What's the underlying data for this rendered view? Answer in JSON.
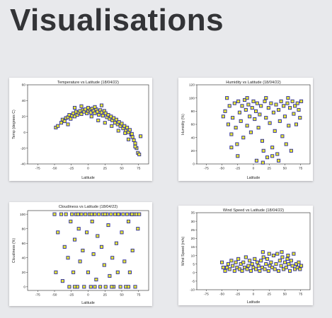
{
  "page": {
    "title": "Visualisations"
  },
  "colors": {
    "fill": "#e8e832",
    "edge": "#2a2a9a",
    "axis": "#222222",
    "background": "#e8e9ec"
  },
  "charts": [
    {
      "id": "temp",
      "title": "Temperature vs Latitude (18/04/22)",
      "xlabel": "Latitude",
      "ylabel": "Temp (degrees C)",
      "xticks": [
        "-75",
        "-50",
        "-25",
        "0",
        "25",
        "50",
        "75"
      ],
      "yticks": [
        "60",
        "40",
        "20",
        "0",
        "-20",
        "-40"
      ]
    },
    {
      "id": "humidity",
      "title": "Humidity vs Latitude (18/04/22)",
      "xlabel": "Latitude",
      "ylabel": "Humidity (%)",
      "xticks": [
        "-75",
        "-50",
        "-25",
        "0",
        "25",
        "50",
        "75"
      ],
      "yticks": [
        "120",
        "100",
        "80",
        "60",
        "40",
        "20",
        "0"
      ]
    },
    {
      "id": "cloud",
      "title": "Cloudiness vs Latitude (18/04/22)",
      "xlabel": "Latitude",
      "ylabel": "Cloudiness (%)",
      "xticks": [
        "-75",
        "-50",
        "-25",
        "0",
        "25",
        "50",
        "75"
      ],
      "yticks": [
        "100",
        "80",
        "60",
        "40",
        "20",
        "0"
      ]
    },
    {
      "id": "wind",
      "title": "Wind Speed vs Latitude (18/04/22)",
      "xlabel": "Latitude",
      "ylabel": "Wind Speed (m/s)",
      "xticks": [
        "-75",
        "-50",
        "-25",
        "0",
        "25",
        "50",
        "75"
      ],
      "yticks": [
        "35",
        "30",
        "25",
        "20",
        "15",
        "10",
        "5",
        "0",
        "-5",
        "-10"
      ]
    }
  ],
  "chart_data": [
    {
      "type": "scatter",
      "title": "Temperature vs Latitude (18/04/22)",
      "xlabel": "Latitude",
      "ylabel": "Temp (degrees C)",
      "xlim": [
        -90,
        90
      ],
      "ylim": [
        -40,
        60
      ],
      "points": [
        [
          -48,
          6
        ],
        [
          -45,
          8
        ],
        [
          -40,
          12
        ],
        [
          -38,
          16
        ],
        [
          -35,
          14
        ],
        [
          -33,
          18
        ],
        [
          -30,
          19
        ],
        [
          -28,
          22
        ],
        [
          -26,
          17
        ],
        [
          -24,
          21
        ],
        [
          -22,
          24
        ],
        [
          -20,
          20
        ],
        [
          -18,
          26
        ],
        [
          -16,
          22
        ],
        [
          -14,
          25
        ],
        [
          -12,
          27
        ],
        [
          -10,
          23
        ],
        [
          -8,
          28
        ],
        [
          -6,
          26
        ],
        [
          -4,
          29
        ],
        [
          -2,
          24
        ],
        [
          0,
          27
        ],
        [
          2,
          29
        ],
        [
          4,
          25
        ],
        [
          6,
          30
        ],
        [
          8,
          27
        ],
        [
          10,
          24
        ],
        [
          12,
          29
        ],
        [
          14,
          26
        ],
        [
          16,
          22
        ],
        [
          18,
          28
        ],
        [
          20,
          25
        ],
        [
          22,
          21
        ],
        [
          24,
          27
        ],
        [
          26,
          24
        ],
        [
          28,
          19
        ],
        [
          30,
          22
        ],
        [
          32,
          17
        ],
        [
          34,
          20
        ],
        [
          36,
          15
        ],
        [
          38,
          18
        ],
        [
          40,
          12
        ],
        [
          42,
          16
        ],
        [
          44,
          10
        ],
        [
          46,
          13
        ],
        [
          48,
          8
        ],
        [
          50,
          11
        ],
        [
          52,
          5
        ],
        [
          54,
          8
        ],
        [
          56,
          2
        ],
        [
          58,
          6
        ],
        [
          60,
          0
        ],
        [
          62,
          3
        ],
        [
          64,
          -3
        ],
        [
          66,
          -6
        ],
        [
          68,
          -10
        ],
        [
          70,
          -14
        ],
        [
          72,
          -20
        ],
        [
          74,
          -26
        ],
        [
          76,
          -28
        ],
        [
          78,
          -5
        ],
        [
          -20,
          31
        ],
        [
          -10,
          33
        ],
        [
          0,
          31
        ],
        [
          10,
          32
        ],
        [
          20,
          34
        ],
        [
          5,
          20
        ],
        [
          15,
          15
        ],
        [
          25,
          12
        ],
        [
          -30,
          10
        ],
        [
          35,
          8
        ],
        [
          45,
          2
        ],
        [
          55,
          -1
        ],
        [
          65,
          -2
        ],
        [
          70,
          -18
        ],
        [
          60,
          -9
        ]
      ]
    },
    {
      "type": "scatter",
      "title": "Humidity vs Latitude (18/04/22)",
      "xlabel": "Latitude",
      "ylabel": "Humidity (%)",
      "xlim": [
        -90,
        90
      ],
      "ylim": [
        0,
        120
      ],
      "points": [
        [
          -48,
          72
        ],
        [
          -45,
          80
        ],
        [
          -40,
          60
        ],
        [
          -38,
          88
        ],
        [
          -35,
          45
        ],
        [
          -33,
          70
        ],
        [
          -30,
          92
        ],
        [
          -28,
          55
        ],
        [
          -26,
          30
        ],
        [
          -24,
          95
        ],
        [
          -22,
          78
        ],
        [
          -20,
          65
        ],
        [
          -18,
          88
        ],
        [
          -16,
          40
        ],
        [
          -14,
          97
        ],
        [
          -12,
          82
        ],
        [
          -10,
          58
        ],
        [
          -8,
          90
        ],
        [
          -6,
          72
        ],
        [
          -4,
          48
        ],
        [
          -2,
          85
        ],
        [
          0,
          95
        ],
        [
          2,
          68
        ],
        [
          4,
          80
        ],
        [
          6,
          92
        ],
        [
          8,
          55
        ],
        [
          10,
          75
        ],
        [
          12,
          88
        ],
        [
          14,
          35
        ],
        [
          16,
          20
        ],
        [
          18,
          95
        ],
        [
          20,
          70
        ],
        [
          22,
          10
        ],
        [
          24,
          85
        ],
        [
          26,
          62
        ],
        [
          28,
          92
        ],
        [
          30,
          25
        ],
        [
          32,
          78
        ],
        [
          34,
          50
        ],
        [
          36,
          90
        ],
        [
          38,
          15
        ],
        [
          40,
          82
        ],
        [
          42,
          65
        ],
        [
          44,
          95
        ],
        [
          46,
          42
        ],
        [
          48,
          88
        ],
        [
          50,
          72
        ],
        [
          52,
          30
        ],
        [
          54,
          92
        ],
        [
          56,
          58
        ],
        [
          58,
          85
        ],
        [
          60,
          20
        ],
        [
          62,
          95
        ],
        [
          64,
          76
        ],
        [
          66,
          88
        ],
        [
          68,
          60
        ],
        [
          70,
          92
        ],
        [
          72,
          82
        ],
        [
          74,
          70
        ],
        [
          76,
          95
        ],
        [
          -42,
          100
        ],
        [
          -10,
          100
        ],
        [
          20,
          100
        ],
        [
          55,
          100
        ],
        [
          -35,
          25
        ],
        [
          5,
          5
        ],
        [
          15,
          2
        ],
        [
          40,
          5
        ],
        [
          -25,
          12
        ],
        [
          30,
          12
        ]
      ]
    },
    {
      "type": "scatter",
      "title": "Cloudiness vs Latitude (18/04/22)",
      "xlabel": "Latitude",
      "ylabel": "Cloudiness (%)",
      "xlim": [
        -90,
        90
      ],
      "ylim": [
        -5,
        105
      ],
      "points": [
        [
          -48,
          20
        ],
        [
          -45,
          75
        ],
        [
          -40,
          100
        ],
        [
          -38,
          8
        ],
        [
          -35,
          55
        ],
        [
          -33,
          100
        ],
        [
          -30,
          40
        ],
        [
          -28,
          0
        ],
        [
          -26,
          90
        ],
        [
          -24,
          100
        ],
        [
          -22,
          20
        ],
        [
          -20,
          65
        ],
        [
          -18,
          100
        ],
        [
          -16,
          0
        ],
        [
          -14,
          80
        ],
        [
          -12,
          35
        ],
        [
          -10,
          100
        ],
        [
          -8,
          50
        ],
        [
          -6,
          0
        ],
        [
          -4,
          100
        ],
        [
          -2,
          75
        ],
        [
          0,
          20
        ],
        [
          2,
          100
        ],
        [
          4,
          0
        ],
        [
          6,
          90
        ],
        [
          8,
          45
        ],
        [
          10,
          100
        ],
        [
          12,
          10
        ],
        [
          14,
          70
        ],
        [
          16,
          100
        ],
        [
          18,
          0
        ],
        [
          20,
          55
        ],
        [
          22,
          100
        ],
        [
          24,
          30
        ],
        [
          26,
          0
        ],
        [
          28,
          100
        ],
        [
          30,
          85
        ],
        [
          32,
          15
        ],
        [
          34,
          100
        ],
        [
          36,
          40
        ],
        [
          38,
          0
        ],
        [
          40,
          100
        ],
        [
          42,
          60
        ],
        [
          44,
          20
        ],
        [
          46,
          100
        ],
        [
          48,
          0
        ],
        [
          50,
          75
        ],
        [
          52,
          100
        ],
        [
          54,
          35
        ],
        [
          56,
          0
        ],
        [
          58,
          100
        ],
        [
          60,
          90
        ],
        [
          62,
          20
        ],
        [
          64,
          100
        ],
        [
          66,
          50
        ],
        [
          68,
          100
        ],
        [
          70,
          0
        ],
        [
          72,
          100
        ],
        [
          74,
          80
        ],
        [
          76,
          100
        ],
        [
          -50,
          100
        ],
        [
          -15,
          100
        ],
        [
          5,
          100
        ],
        [
          25,
          100
        ],
        [
          45,
          100
        ],
        [
          65,
          100
        ],
        [
          -20,
          0
        ],
        [
          10,
          0
        ],
        [
          35,
          0
        ],
        [
          60,
          0
        ]
      ]
    },
    {
      "type": "scatter",
      "title": "Wind Speed vs Latitude (18/04/22)",
      "xlabel": "Latitude",
      "ylabel": "Wind Speed (m/s)",
      "xlim": [
        -90,
        90
      ],
      "ylim": [
        -10,
        35
      ],
      "points": [
        [
          -48,
          3
        ],
        [
          -45,
          1
        ],
        [
          -40,
          5
        ],
        [
          -38,
          2
        ],
        [
          -35,
          7
        ],
        [
          -33,
          4
        ],
        [
          -30,
          1
        ],
        [
          -28,
          6
        ],
        [
          -26,
          3
        ],
        [
          -24,
          8
        ],
        [
          -22,
          2
        ],
        [
          -20,
          5
        ],
        [
          -18,
          1
        ],
        [
          -16,
          6
        ],
        [
          -14,
          3
        ],
        [
          -12,
          9
        ],
        [
          -10,
          2
        ],
        [
          -8,
          4
        ],
        [
          -6,
          7
        ],
        [
          -4,
          1
        ],
        [
          -2,
          5
        ],
        [
          0,
          3
        ],
        [
          2,
          8
        ],
        [
          4,
          2
        ],
        [
          6,
          6
        ],
        [
          8,
          4
        ],
        [
          10,
          1
        ],
        [
          12,
          7
        ],
        [
          14,
          3
        ],
        [
          16,
          9
        ],
        [
          18,
          2
        ],
        [
          20,
          5
        ],
        [
          22,
          8
        ],
        [
          24,
          1
        ],
        [
          26,
          4
        ],
        [
          28,
          6
        ],
        [
          30,
          3
        ],
        [
          32,
          10
        ],
        [
          34,
          2
        ],
        [
          36,
          5
        ],
        [
          38,
          11
        ],
        [
          40,
          1
        ],
        [
          42,
          7
        ],
        [
          44,
          4
        ],
        [
          46,
          9
        ],
        [
          48,
          2
        ],
        [
          50,
          6
        ],
        [
          52,
          3
        ],
        [
          54,
          8
        ],
        [
          56,
          5
        ],
        [
          58,
          1
        ],
        [
          60,
          7
        ],
        [
          62,
          4
        ],
        [
          64,
          11
        ],
        [
          66,
          2
        ],
        [
          68,
          5
        ],
        [
          70,
          3
        ],
        [
          72,
          6
        ],
        [
          74,
          2
        ],
        [
          76,
          4
        ],
        [
          -50,
          6
        ],
        [
          -42,
          3
        ],
        [
          15,
          12
        ],
        [
          25,
          11
        ],
        [
          45,
          12
        ],
        [
          55,
          10
        ]
      ]
    }
  ]
}
